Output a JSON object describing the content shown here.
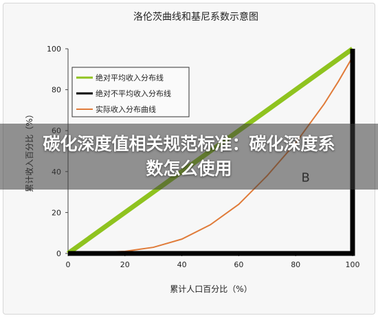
{
  "overlay": {
    "title": "碳化深度值相关规范标准：碳化深度系数怎么使用"
  },
  "chart_data": {
    "type": "line",
    "title": "洛伦茨曲线和基尼系数示意图",
    "xlabel": "累计人口百分比（%）",
    "ylabel": "累计收入百分比（%）",
    "xlim": [
      0,
      100
    ],
    "ylim": [
      0,
      100
    ],
    "xticks": [
      0,
      20,
      40,
      60,
      80,
      100
    ],
    "yticks": [
      0,
      20,
      40,
      60,
      80,
      100
    ],
    "grid": false,
    "legend_position": "top-left",
    "annotations": [
      {
        "text": "B",
        "x": 82,
        "y": 35
      }
    ],
    "series": [
      {
        "name": "绝对平均收入分布线",
        "color": "#8fc31f",
        "x": [
          0,
          100
        ],
        "y": [
          0,
          100
        ]
      },
      {
        "name": "绝对不平均收入分布线",
        "color": "#000000",
        "x": [
          0,
          100,
          100
        ],
        "y": [
          0,
          0,
          100
        ]
      },
      {
        "name": "实际收入分布曲线",
        "color": "#e07b39",
        "x": [
          0,
          10,
          20,
          25,
          30,
          40,
          50,
          60,
          70,
          80,
          90,
          95,
          100
        ],
        "y": [
          0,
          0.5,
          1,
          2,
          3,
          7,
          14,
          24,
          38,
          54,
          73,
          84,
          96
        ]
      }
    ]
  }
}
